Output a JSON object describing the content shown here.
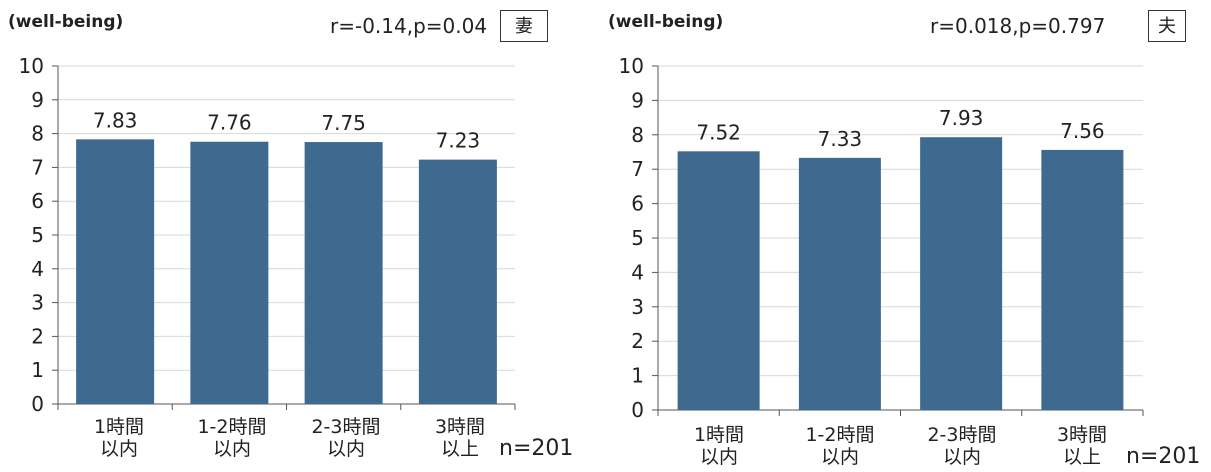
{
  "charts": [
    {
      "ylabel": "(well-being)",
      "stats": "r=-0.14,p=0.04",
      "tag": "妻",
      "n_label": "n=201",
      "xlab_lines": [
        [
          "1時間",
          "以内"
        ],
        [
          "1-2時間",
          "以内"
        ],
        [
          "2-3時間",
          "以内"
        ],
        [
          "3時間",
          "以上"
        ]
      ]
    },
    {
      "ylabel": "(well-being)",
      "stats": "r=0.018,p=0.797",
      "tag": "夫",
      "n_label": "n=201",
      "xlab_lines": [
        [
          "1時間",
          "以内"
        ],
        [
          "1-2時間",
          "以内"
        ],
        [
          "2-3時間",
          "以内"
        ],
        [
          "3時間",
          "以上"
        ]
      ]
    }
  ],
  "chart_data": [
    {
      "type": "bar",
      "categories": [
        "1時間以内",
        "1-2時間以内",
        "2-3時間以内",
        "3時間以上"
      ],
      "values": [
        7.83,
        7.76,
        7.75,
        7.23
      ],
      "value_labels": [
        "7.83",
        "7.76",
        "7.75",
        "7.23"
      ],
      "ylim": [
        0,
        10
      ],
      "yticks": [
        "0",
        "1",
        "2",
        "3",
        "4",
        "5",
        "6",
        "7",
        "8",
        "9",
        "10"
      ],
      "grid": true,
      "bar_color": "#3f6a8f"
    },
    {
      "type": "bar",
      "categories": [
        "1時間以内",
        "1-2時間以内",
        "2-3時間以内",
        "3時間以上"
      ],
      "values": [
        7.52,
        7.33,
        7.93,
        7.56
      ],
      "value_labels": [
        "7.52",
        "7.33",
        "7.93",
        "7.56"
      ],
      "ylim": [
        0,
        10
      ],
      "yticks": [
        "0",
        "1",
        "2",
        "3",
        "4",
        "5",
        "6",
        "7",
        "8",
        "9",
        "10"
      ],
      "grid": true,
      "bar_color": "#3f6a8f"
    }
  ]
}
